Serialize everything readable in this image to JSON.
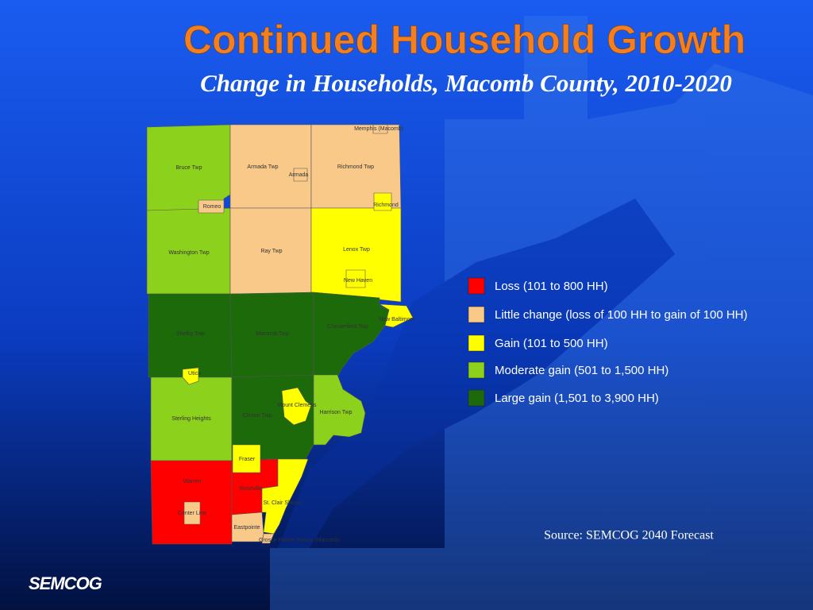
{
  "header": {
    "title": "Continued Household Growth",
    "subtitle": "Change in Households, Macomb County, 2010-2020"
  },
  "legend": [
    {
      "label": "Loss (101 to 800 HH)",
      "color": "#ff0000"
    },
    {
      "label": "Little change (loss of 100 HH to gain of 100 HH)",
      "color": "#f9c98a"
    },
    {
      "label": "Gain (101 to 500 HH)",
      "color": "#ffff00"
    },
    {
      "label": "Moderate gain (501 to 1,500 HH)",
      "color": "#8cd11b"
    },
    {
      "label": "Large gain (1,501 to 3,900 HH)",
      "color": "#1d6a0a"
    }
  ],
  "regions": [
    {
      "label": "Bruce Twp",
      "color": "#8cd11b"
    },
    {
      "label": "Armada Twp",
      "color": "#f9c98a"
    },
    {
      "label": "Richmond Twp",
      "color": "#f9c98a"
    },
    {
      "label": "Washington Twp",
      "color": "#8cd11b"
    },
    {
      "label": "Ray Twp",
      "color": "#f9c98a"
    },
    {
      "label": "Lenox Twp",
      "color": "#ffff00"
    },
    {
      "label": "Shelby Twp",
      "color": "#1d6a0a"
    },
    {
      "label": "Macomb Twp",
      "color": "#1d6a0a"
    },
    {
      "label": "Chesterfield Twp",
      "color": "#1d6a0a"
    },
    {
      "label": "New Baltimore",
      "color": "#ffff00"
    },
    {
      "label": "Sterling Heights",
      "color": "#8cd11b"
    },
    {
      "label": "Clinton Twp",
      "color": "#1d6a0a"
    },
    {
      "label": "Harrison Twp",
      "color": "#8cd11b"
    },
    {
      "label": "Mount Clemens",
      "color": "#ffff00"
    },
    {
      "label": "Utica",
      "color": "#ffff00"
    },
    {
      "label": "Warren",
      "color": "#ff0000"
    },
    {
      "label": "Center Line",
      "color": "#f9c98a"
    },
    {
      "label": "Roseville",
      "color": "#ff0000"
    },
    {
      "label": "Fraser",
      "color": "#ffff00"
    },
    {
      "label": "St. Clair Shores",
      "color": "#ffff00"
    },
    {
      "label": "Eastpointe",
      "color": "#f9c98a"
    },
    {
      "label": "Grosse Pointe Shores (Macomb)",
      "color": "#f9c98a"
    },
    {
      "label": "New Haven",
      "color": "#ffff00"
    },
    {
      "label": "Richmond",
      "color": "#ffff00"
    },
    {
      "label": "Armada",
      "color": "#f9c98a"
    },
    {
      "label": "Memphis (Macomb)",
      "color": "#f9c98a"
    },
    {
      "label": "Romeo",
      "color": "#f9c98a"
    }
  ],
  "source": "Source: SEMCOG 2040 Forecast",
  "logo": "SEMCOG"
}
